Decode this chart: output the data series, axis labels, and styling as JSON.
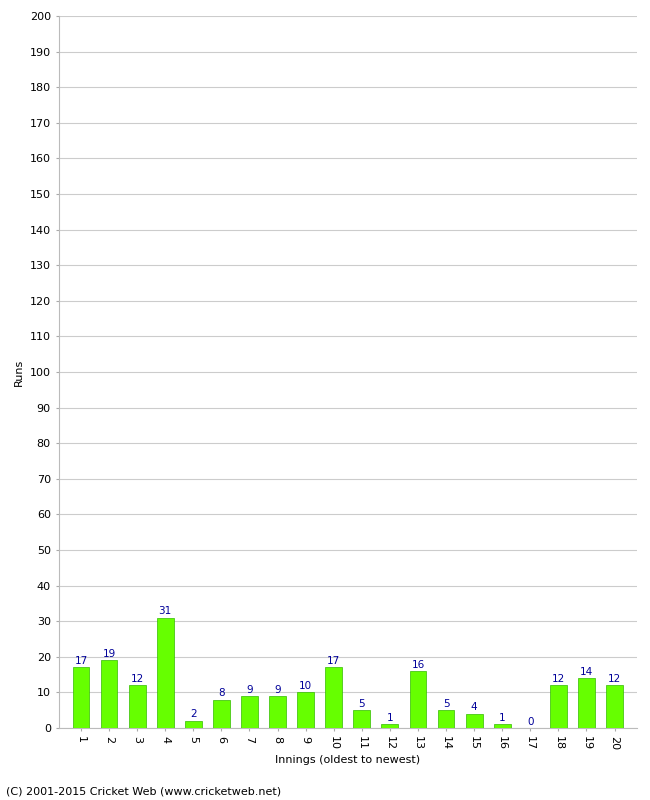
{
  "innings": [
    1,
    2,
    3,
    4,
    5,
    6,
    7,
    8,
    9,
    10,
    11,
    12,
    13,
    14,
    15,
    16,
    17,
    18,
    19,
    20
  ],
  "runs": [
    17,
    19,
    12,
    31,
    2,
    8,
    9,
    9,
    10,
    17,
    5,
    1,
    16,
    5,
    4,
    1,
    0,
    12,
    14,
    12
  ],
  "bar_color": "#66ff00",
  "bar_edge_color": "#33bb00",
  "label_color": "#000099",
  "xlabel": "Innings (oldest to newest)",
  "ylabel": "Runs",
  "ylim": [
    0,
    200
  ],
  "yticks": [
    0,
    10,
    20,
    30,
    40,
    50,
    60,
    70,
    80,
    90,
    100,
    110,
    120,
    130,
    140,
    150,
    160,
    170,
    180,
    190,
    200
  ],
  "footer": "(C) 2001-2015 Cricket Web (www.cricketweb.net)",
  "background_color": "#ffffff",
  "grid_color": "#cccccc",
  "label_fontsize": 7.5,
  "axis_fontsize": 8,
  "footer_fontsize": 8
}
